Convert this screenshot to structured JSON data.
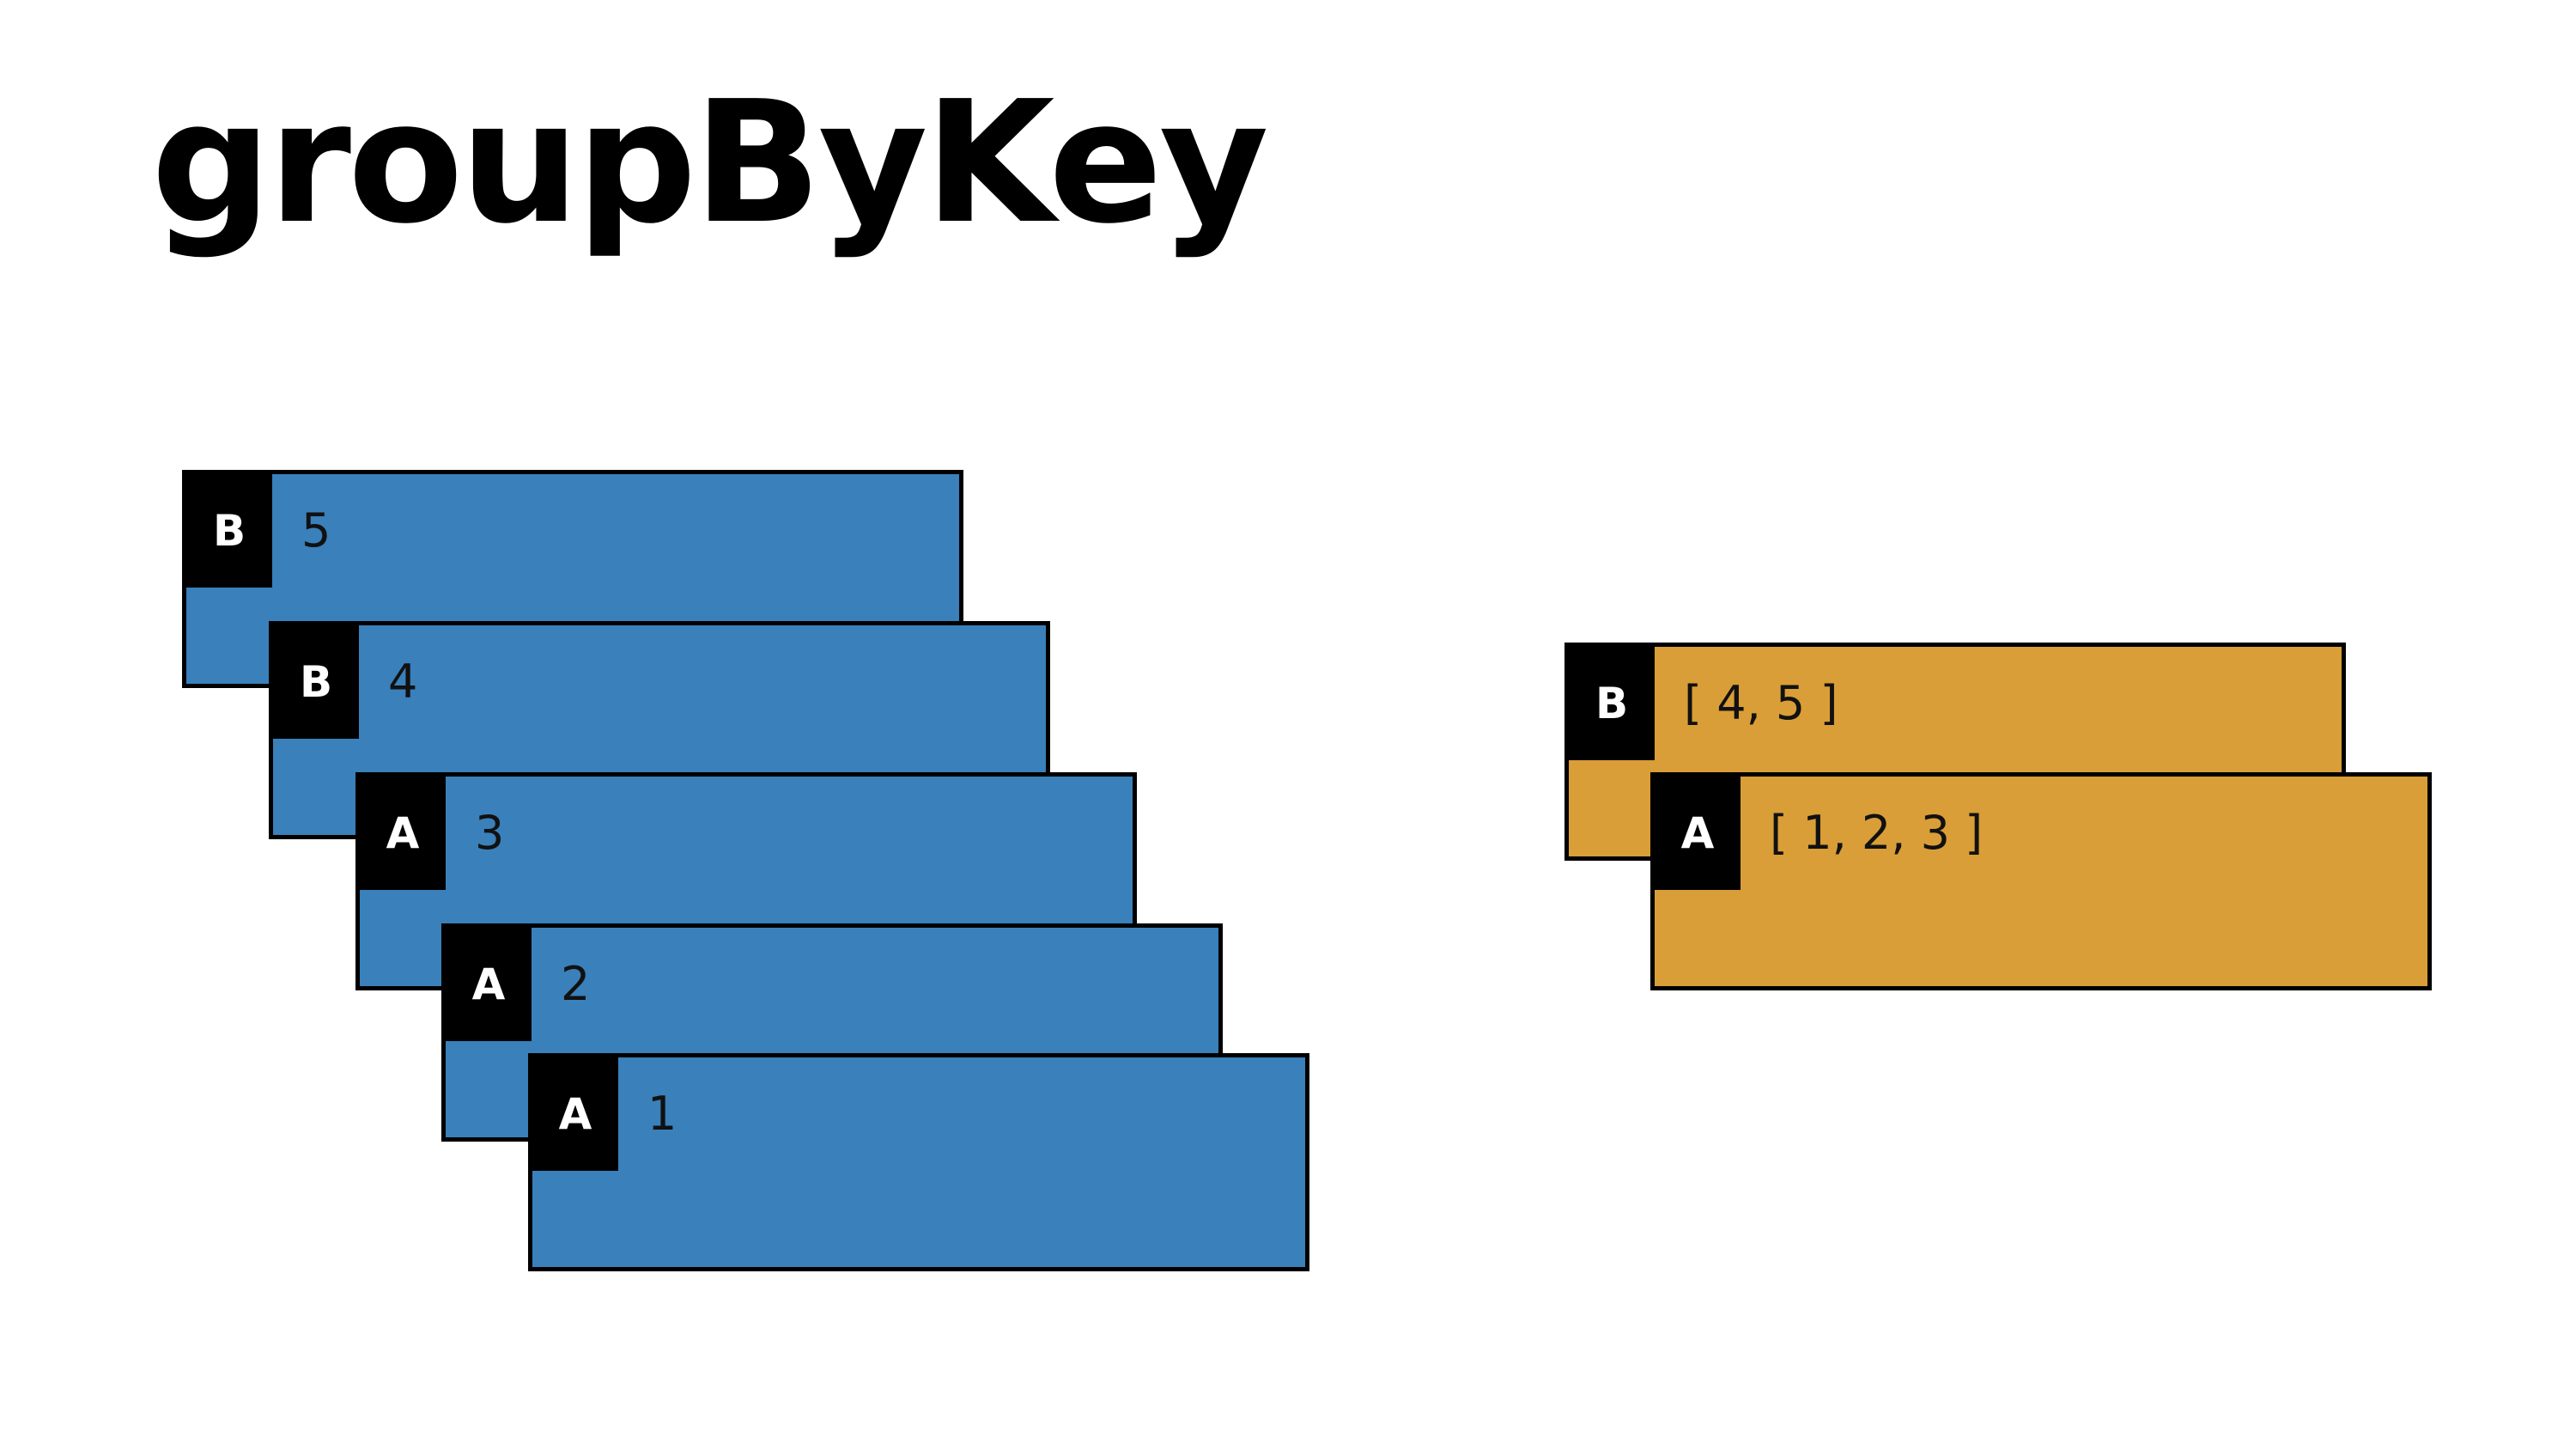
{
  "title": "groupByKey",
  "colors": {
    "input_fill": "#3a80ba",
    "output_fill": "#d99e37",
    "key_fill": "#000000"
  },
  "input_records": [
    {
      "key": "B",
      "value": "5"
    },
    {
      "key": "B",
      "value": "4"
    },
    {
      "key": "A",
      "value": "3"
    },
    {
      "key": "A",
      "value": "2"
    },
    {
      "key": "A",
      "value": "1"
    }
  ],
  "output_records": [
    {
      "key": "B",
      "value": "[ 4, 5 ]"
    },
    {
      "key": "A",
      "value": "[ 1, 2, 3 ]"
    }
  ]
}
